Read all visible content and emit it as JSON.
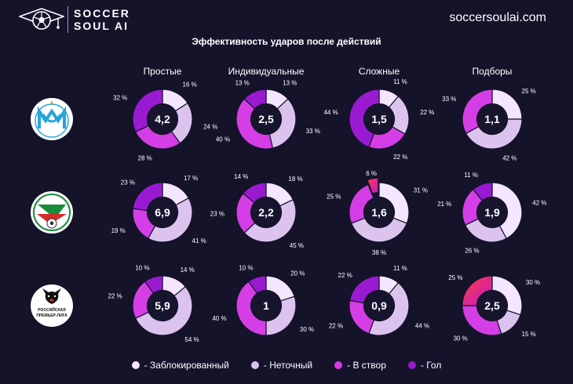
{
  "header": {
    "brand_line1": "SOCCER",
    "brand_line2": "SOUL AI",
    "site": "soccersoulai.com"
  },
  "colors": {
    "background": "#15132a",
    "Заблокированный": "#f5e6ff",
    "Неточный": "#dcc3ee",
    "В створ": "#d53ee6",
    "Гол": "#9a1ad2",
    "hole": "#17152e"
  },
  "legend": [
    {
      "key": "Заблокированный",
      "label": "- Заблокированный"
    },
    {
      "key": "Неточный",
      "label": "- Неточный"
    },
    {
      "key": "В створ",
      "label": "- В створ"
    },
    {
      "key": "Гол",
      "label": "- Гол"
    }
  ],
  "teams": [
    {
      "name": "",
      "logo_icon": "marseille-crest-icon"
    },
    {
      "name": "",
      "logo_icon": "lokomotiv-crest-icon"
    },
    {
      "name": "",
      "logo_icon": "rpl-logo-icon",
      "logo_text1": "РОССИЙСКАЯ",
      "logo_text2": "ПРЕМЬЕР-ЛИГА"
    }
  ],
  "chart_data": {
    "type": "pie",
    "variant": "donut-grid",
    "title": "Эффективность ударов после действий",
    "columns": [
      "Простые",
      "Индивидуальные",
      "Сложные",
      "Подборы"
    ],
    "segment_order": [
      "Заблокированный",
      "Неточный",
      "В створ",
      "Гол"
    ],
    "rows": [
      {
        "team_index": 0,
        "cells": [
          {
            "center": "4,2",
            "segments": [
              16,
              24,
              28,
              32
            ]
          },
          {
            "center": "2,5",
            "segments": [
              13,
              33,
              40,
              13
            ]
          },
          {
            "center": "1,5",
            "segments": [
              11,
              22,
              22,
              44
            ]
          },
          {
            "center": "1,1",
            "segments": [
              25,
              42,
              33,
              0
            ]
          }
        ]
      },
      {
        "team_index": 1,
        "cells": [
          {
            "center": "6,9",
            "segments": [
              17,
              41,
              19,
              23
            ]
          },
          {
            "center": "2,2",
            "segments": [
              18,
              45,
              23,
              14
            ]
          },
          {
            "center": "1,6",
            "segments": [
              31,
              38,
              25,
              6
            ],
            "highlight_index": 3
          },
          {
            "center": "1,9",
            "segments": [
              42,
              26,
              21,
              11
            ]
          }
        ]
      },
      {
        "team_index": 2,
        "cells": [
          {
            "center": "5,9",
            "segments": [
              14,
              54,
              22,
              10
            ]
          },
          {
            "center": "1",
            "segments": [
              20,
              30,
              40,
              10
            ]
          },
          {
            "center": "0,9",
            "segments": [
              11,
              44,
              22,
              22
            ]
          },
          {
            "center": "2,5",
            "segments": [
              30,
              15,
              30,
              25
            ],
            "highlight_index": 3
          }
        ]
      }
    ],
    "label_suffix": " %"
  }
}
